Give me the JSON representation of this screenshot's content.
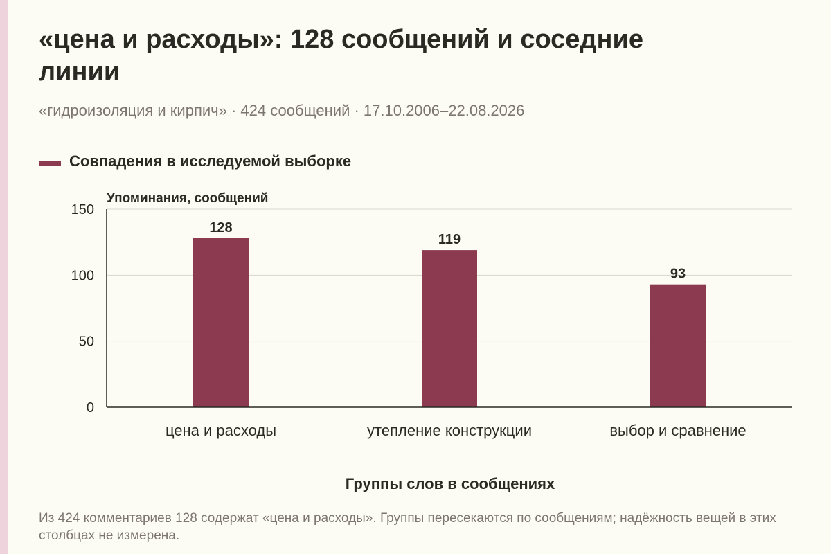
{
  "title": "«цена и расходы»: 128 сообщений и соседние линии",
  "subtitle": "«гидроизоляция и кирпич» · 424 сообщений · 17.10.2006–22.08.2026",
  "note": "Из 424 комментариев 128 содержат «цена и расходы». Группы пересекаются по сообщениям; надёжность вещей в этих столбцах не измерена.",
  "colors": {
    "bar": "#8b3a50",
    "background": "#fdfcf4",
    "accent": "#efd3dc"
  },
  "chart_data": {
    "type": "bar",
    "categories": [
      "цена и расходы",
      "утепление конструкции",
      "выбор и сравнение"
    ],
    "series": [
      {
        "name": "Совпадения в исследуемой выборке",
        "values": [
          128,
          119,
          93
        ]
      }
    ],
    "ylabel": "Упоминания, сообщений",
    "xlabel": "Группы слов в сообщениях",
    "ylim": [
      0,
      150
    ],
    "yticks": [
      0,
      50,
      100,
      150
    ],
    "grid": true,
    "legend": "top-left"
  }
}
